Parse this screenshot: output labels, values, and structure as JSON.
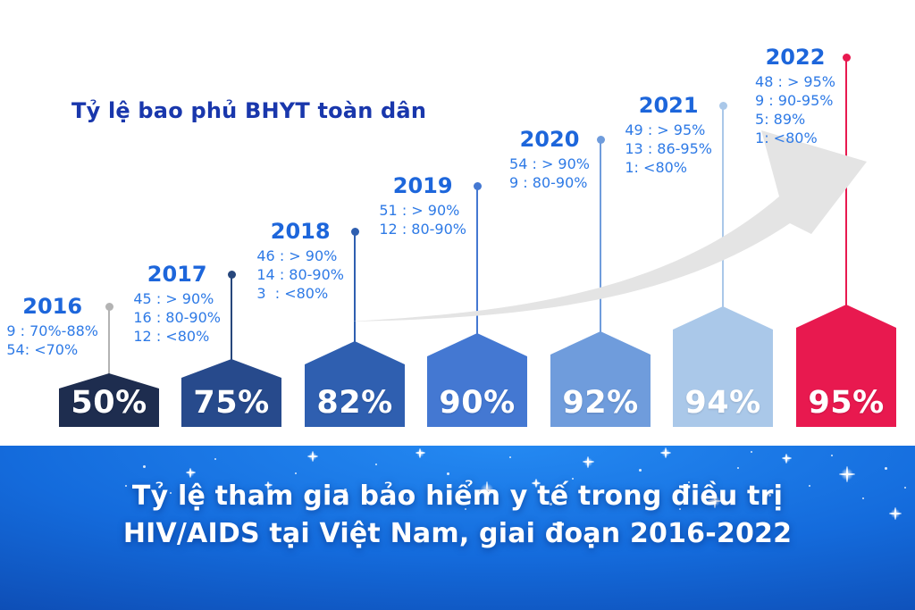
{
  "header": {
    "title": "Tỷ lệ bao phủ BHYT toàn dân"
  },
  "banner": {
    "line1": "Tỷ lệ tham gia bảo hiểm y tế trong điều trị",
    "line2": "HIV/AIDS tại Việt Nam, giai đoạn 2016-2022"
  },
  "columns": [
    {
      "year": "2016",
      "value": "50%",
      "lines": [
        "9 : 70%-88%",
        "54: <70%"
      ],
      "color": "#1e2d4f",
      "stem": "#b3b3b3"
    },
    {
      "year": "2017",
      "value": "75%",
      "lines": [
        "45 : > 90%",
        "16 : 80-90%",
        "12 : <80%"
      ],
      "color": "#274a8c",
      "stem": "#27477c"
    },
    {
      "year": "2018",
      "value": "82%",
      "lines": [
        "46 : > 90%",
        "14 : 80-90%",
        "3  : <80%"
      ],
      "color": "#2f5fb0",
      "stem": "#2f5fb0"
    },
    {
      "year": "2019",
      "value": "90%",
      "lines": [
        "51 : > 90%",
        "12 : 80-90%"
      ],
      "color": "#4478d2",
      "stem": "#4478d2"
    },
    {
      "year": "2020",
      "value": "92%",
      "lines": [
        "54 : > 90%",
        "9 : 80-90%"
      ],
      "color": "#6f9cdc",
      "stem": "#6f9cdc"
    },
    {
      "year": "2021",
      "value": "94%",
      "lines": [
        "49 : > 95%",
        "13 : 86-95%",
        "1: <80%"
      ],
      "color": "#aac8e9",
      "stem": "#aac8e9"
    },
    {
      "year": "2022",
      "value": "95%",
      "lines": [
        "48 : > 95%",
        "9 : 90-95%",
        "5: 89%",
        "1: <80%"
      ],
      "color": "#e8194f",
      "stem": "#e8194f"
    }
  ],
  "arrow_color": "#e4e4e4",
  "chart_data": {
    "type": "bar",
    "title": "Tỷ lệ tham gia bảo hiểm y tế trong điều trị HIV/AIDS tại Việt Nam, giai đoạn 2016-2022",
    "subtitle": "Tỷ lệ bao phủ BHYT toàn dân",
    "categories": [
      "2016",
      "2017",
      "2018",
      "2019",
      "2020",
      "2021",
      "2022"
    ],
    "values": [
      50,
      75,
      82,
      90,
      92,
      94,
      95
    ],
    "unit": "%",
    "ylim": [
      0,
      100
    ],
    "legend": "none",
    "grid": false,
    "bar_colors": [
      "#1e2d4f",
      "#274a8c",
      "#2f5fb0",
      "#4478d2",
      "#6f9cdc",
      "#aac8e9",
      "#e8194f"
    ],
    "annotations": [
      {
        "category": "2016",
        "lines": [
          "9 : 70%-88%",
          "54: <70%"
        ]
      },
      {
        "category": "2017",
        "lines": [
          "45 : > 90%",
          "16 : 80-90%",
          "12 : <80%"
        ]
      },
      {
        "category": "2018",
        "lines": [
          "46 : > 90%",
          "14 : 80-90%",
          "3  : <80%"
        ]
      },
      {
        "category": "2019",
        "lines": [
          "51 : > 90%",
          "12 : 80-90%"
        ]
      },
      {
        "category": "2020",
        "lines": [
          "54 : > 90%",
          "9 : 80-90%"
        ]
      },
      {
        "category": "2021",
        "lines": [
          "49 : > 95%",
          "13 : 86-95%",
          "1: <80%"
        ]
      },
      {
        "category": "2022",
        "lines": [
          "48 : > 95%",
          "9 : 90-95%",
          "5: 89%",
          "1: <80%"
        ]
      }
    ]
  }
}
